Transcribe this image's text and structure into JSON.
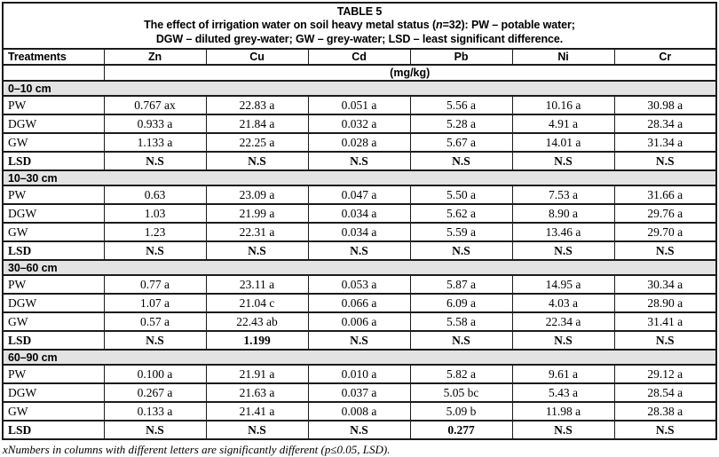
{
  "colors": {
    "section_header_bg": "#e3e3e3",
    "table_border": "#1b1b1b",
    "text": "#000000",
    "page_bg": "#ffffff"
  },
  "title": {
    "line1": "TABLE 5",
    "line2": {
      "before": "The effect of irrigation water on soil heavy metal status (",
      "italic_n": "n",
      "after": "=32):  PW – potable water;"
    },
    "line3": "DGW – diluted grey-water; GW – grey-water; LSD – least significant difference."
  },
  "columns": [
    "Treatments",
    "Zn",
    "Cu",
    "Cd",
    "Pb",
    "Ni",
    "Cr"
  ],
  "unit_row": "(mg/kg)",
  "sections": [
    {
      "label": "0–10 cm",
      "rows": [
        {
          "treatment": "PW",
          "bold": false,
          "values": [
            "0.767 ax",
            "22.83 a",
            "0.051 a",
            "5.56 a",
            "10.16 a",
            "30.98 a"
          ]
        },
        {
          "treatment": "DGW",
          "bold": false,
          "values": [
            "0.933 a",
            "21.84 a",
            "0.032 a",
            "5.28 a",
            "4.91 a",
            "28.34 a"
          ]
        },
        {
          "treatment": "GW",
          "bold": false,
          "values": [
            "1.133 a",
            "22.25 a",
            "0.028 a",
            "5.67 a",
            "14.01 a",
            "31.34 a"
          ]
        },
        {
          "treatment": "LSD",
          "bold": true,
          "values": [
            "N.S",
            "N.S",
            "N.S",
            "N.S",
            "N.S",
            "N.S"
          ]
        }
      ]
    },
    {
      "label": "10–30 cm",
      "rows": [
        {
          "treatment": "PW",
          "bold": false,
          "values": [
            "0.63",
            "23.09 a",
            "0.047 a",
            "5.50 a",
            "7.53 a",
            "31.66 a"
          ]
        },
        {
          "treatment": "DGW",
          "bold": false,
          "values": [
            "1.03",
            "21.99 a",
            "0.034 a",
            "5.62 a",
            "8.90 a",
            "29.76 a"
          ]
        },
        {
          "treatment": "GW",
          "bold": false,
          "values": [
            "1.23",
            "22.31 a",
            "0.034 a",
            "5.59 a",
            "13.46 a",
            "29.70 a"
          ]
        },
        {
          "treatment": "LSD",
          "bold": true,
          "values": [
            "N.S",
            "N.S",
            "N.S",
            "N.S",
            "N.S",
            "N.S"
          ]
        }
      ]
    },
    {
      "label": "30–60 cm",
      "rows": [
        {
          "treatment": "PW",
          "bold": false,
          "values": [
            "0.77 a",
            "23.11 a",
            "0.053 a",
            "5.87 a",
            "14.95 a",
            "30.34 a"
          ]
        },
        {
          "treatment": "DGW",
          "bold": false,
          "values": [
            "1.07 a",
            "21.04 c",
            "0.066 a",
            "6.09 a",
            "4.03 a",
            "28.90 a"
          ]
        },
        {
          "treatment": "GW",
          "bold": false,
          "values": [
            "0.57 a",
            "22.43 ab",
            "0.006 a",
            "5.58 a",
            "22.34 a",
            "31.41 a"
          ]
        },
        {
          "treatment": "LSD",
          "bold": true,
          "values": [
            "N.S",
            "1.199",
            "N.S",
            "N.S",
            "N.S",
            "N.S"
          ]
        }
      ]
    },
    {
      "label": "60–90 cm",
      "rows": [
        {
          "treatment": "PW",
          "bold": false,
          "values": [
            "0.100 a",
            "21.91 a",
            "0.010 a",
            "5.82 a",
            "9.61 a",
            "29.12 a"
          ]
        },
        {
          "treatment": "DGW",
          "bold": false,
          "values": [
            "0.267 a",
            "21.63 a",
            "0.037 a",
            "5.05 bc",
            "5.43 a",
            "28.54 a"
          ]
        },
        {
          "treatment": "GW",
          "bold": false,
          "values": [
            "0.133 a",
            "21.41 a",
            "0.008 a",
            "5.09 b",
            "11.98 a",
            "28.38 a"
          ]
        },
        {
          "treatment": "LSD",
          "bold": true,
          "values": [
            "N.S",
            "N.S",
            "N.S",
            "0.277",
            "N.S",
            "N.S"
          ]
        }
      ]
    }
  ],
  "footnote": "xNumbers in columns with different letters are significantly different (p≤0.05, LSD)."
}
